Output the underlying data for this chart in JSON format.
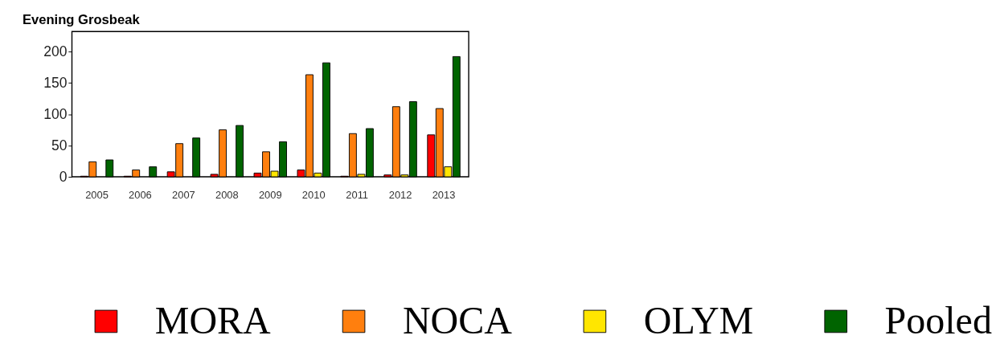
{
  "chart_data": {
    "type": "bar",
    "title": "Evening Grosbeak",
    "categories": [
      "2005",
      "2006",
      "2007",
      "2008",
      "2009",
      "2010",
      "2011",
      "2012",
      "2013"
    ],
    "series": [
      {
        "name": "MORA",
        "color": "#ff0000",
        "values": [
          1,
          1,
          8,
          4,
          6,
          11,
          1,
          3,
          67
        ]
      },
      {
        "name": "NOCA",
        "color": "#ff7f0e",
        "values": [
          24,
          11,
          53,
          75,
          40,
          163,
          69,
          112,
          109
        ]
      },
      {
        "name": "OLYM",
        "color": "#ffe600",
        "values": [
          null,
          null,
          null,
          null,
          9,
          6,
          4,
          3,
          16
        ]
      },
      {
        "name": "Pooled",
        "color": "#006400",
        "values": [
          27,
          16,
          62,
          82,
          56,
          182,
          77,
          120,
          192
        ]
      }
    ],
    "ylim": [
      0,
      232
    ],
    "yticks": [
      0,
      50,
      100,
      150,
      200
    ],
    "grid": false,
    "legend": "bottom"
  }
}
